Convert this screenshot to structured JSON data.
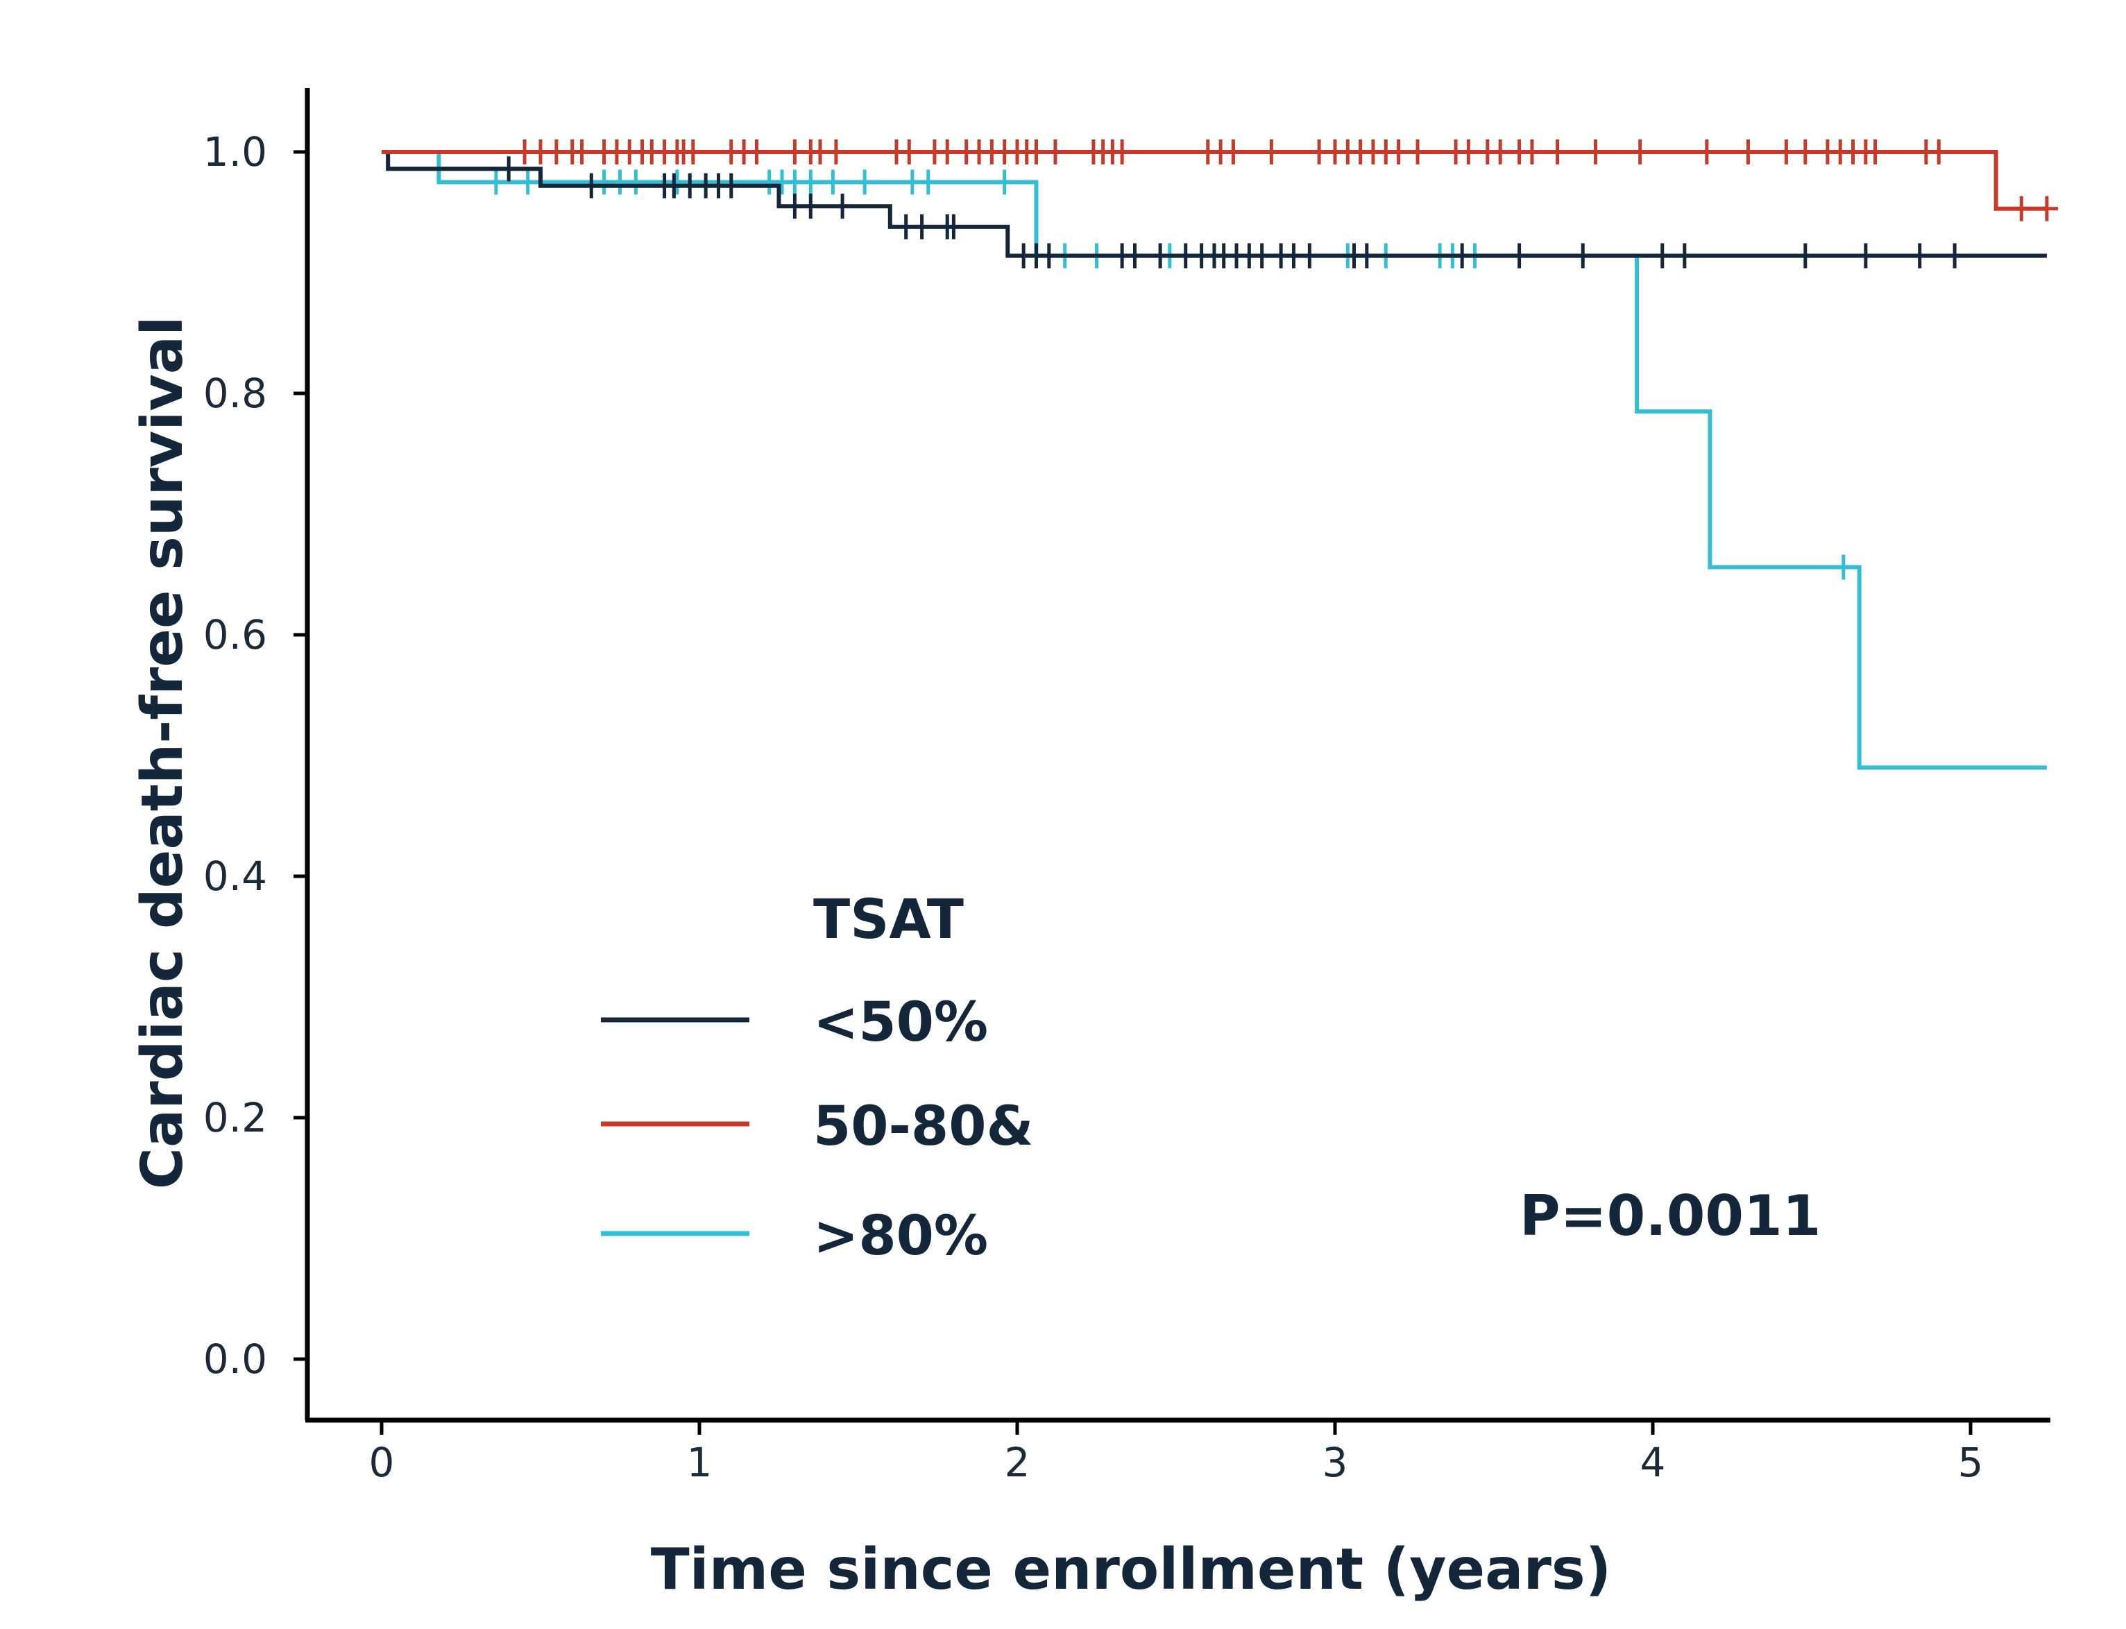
{
  "chart_data": {
    "type": "line",
    "subtype": "kaplan-meier",
    "title": "",
    "xlabel": "Time since enrollment (years)",
    "ylabel": "Cardiac death-free survival",
    "xlim": [
      -0.22,
      5.25
    ],
    "ylim": [
      -0.05,
      1.05
    ],
    "xticks": [
      0,
      1,
      2,
      3,
      4,
      5
    ],
    "xtick_labels": [
      "0",
      "1",
      "2",
      "3",
      "4",
      "5"
    ],
    "yticks": [
      0.0,
      0.2,
      0.4,
      0.6,
      0.8,
      1.0
    ],
    "ytick_labels": [
      "0.0",
      "0.2",
      "0.4",
      "0.6",
      "0.8",
      "1.0"
    ],
    "grid": false,
    "legend_title": "TSAT",
    "legend_position": "center-left",
    "annotation": "P=0.0011",
    "series": [
      {
        "name": "<50%",
        "color": "#14263a",
        "steps": [
          [
            0,
            1.0
          ],
          [
            0.02,
            0.986
          ],
          [
            0.5,
            0.972
          ],
          [
            1.25,
            0.955
          ],
          [
            1.6,
            0.938
          ],
          [
            1.97,
            0.914
          ],
          [
            5.24,
            0.914
          ]
        ],
        "censors": [
          [
            0.4,
            0.986
          ],
          [
            0.66,
            0.972
          ],
          [
            0.89,
            0.972
          ],
          [
            0.92,
            0.972
          ],
          [
            0.97,
            0.972
          ],
          [
            1.02,
            0.972
          ],
          [
            1.06,
            0.972
          ],
          [
            1.1,
            0.972
          ],
          [
            1.3,
            0.955
          ],
          [
            1.35,
            0.955
          ],
          [
            1.45,
            0.955
          ],
          [
            1.65,
            0.938
          ],
          [
            1.7,
            0.938
          ],
          [
            1.78,
            0.938
          ],
          [
            1.8,
            0.938
          ],
          [
            2.02,
            0.914
          ],
          [
            2.06,
            0.914
          ],
          [
            2.1,
            0.914
          ],
          [
            2.33,
            0.914
          ],
          [
            2.37,
            0.914
          ],
          [
            2.45,
            0.914
          ],
          [
            2.53,
            0.914
          ],
          [
            2.58,
            0.914
          ],
          [
            2.62,
            0.914
          ],
          [
            2.65,
            0.914
          ],
          [
            2.69,
            0.914
          ],
          [
            2.73,
            0.914
          ],
          [
            2.77,
            0.914
          ],
          [
            2.83,
            0.914
          ],
          [
            2.87,
            0.914
          ],
          [
            2.92,
            0.914
          ],
          [
            3.06,
            0.914
          ],
          [
            3.1,
            0.914
          ],
          [
            3.4,
            0.914
          ],
          [
            3.58,
            0.914
          ],
          [
            3.78,
            0.914
          ],
          [
            4.03,
            0.914
          ],
          [
            4.1,
            0.914
          ],
          [
            4.48,
            0.914
          ],
          [
            4.67,
            0.914
          ],
          [
            4.84,
            0.914
          ],
          [
            4.95,
            0.914
          ]
        ]
      },
      {
        "name": "50-80&",
        "color": "#c63a2b",
        "steps": [
          [
            0,
            1.0
          ],
          [
            5.08,
            0.953
          ],
          [
            5.24,
            0.953
          ]
        ],
        "censors": [
          [
            0.45,
            1.0
          ],
          [
            0.5,
            1.0
          ],
          [
            0.55,
            1.0
          ],
          [
            0.6,
            1.0
          ],
          [
            0.63,
            1.0
          ],
          [
            0.7,
            1.0
          ],
          [
            0.74,
            1.0
          ],
          [
            0.78,
            1.0
          ],
          [
            0.82,
            1.0
          ],
          [
            0.85,
            1.0
          ],
          [
            0.89,
            1.0
          ],
          [
            0.93,
            1.0
          ],
          [
            0.95,
            1.0
          ],
          [
            0.98,
            1.0
          ],
          [
            1.1,
            1.0
          ],
          [
            1.14,
            1.0
          ],
          [
            1.18,
            1.0
          ],
          [
            1.3,
            1.0
          ],
          [
            1.35,
            1.0
          ],
          [
            1.38,
            1.0
          ],
          [
            1.43,
            1.0
          ],
          [
            1.62,
            1.0
          ],
          [
            1.66,
            1.0
          ],
          [
            1.74,
            1.0
          ],
          [
            1.78,
            1.0
          ],
          [
            1.84,
            1.0
          ],
          [
            1.88,
            1.0
          ],
          [
            1.92,
            1.0
          ],
          [
            1.96,
            1.0
          ],
          [
            2.0,
            1.0
          ],
          [
            2.03,
            1.0
          ],
          [
            2.06,
            1.0
          ],
          [
            2.12,
            1.0
          ],
          [
            2.24,
            1.0
          ],
          [
            2.27,
            1.0
          ],
          [
            2.3,
            1.0
          ],
          [
            2.33,
            1.0
          ],
          [
            2.6,
            1.0
          ],
          [
            2.64,
            1.0
          ],
          [
            2.68,
            1.0
          ],
          [
            2.8,
            1.0
          ],
          [
            2.95,
            1.0
          ],
          [
            3.0,
            1.0
          ],
          [
            3.04,
            1.0
          ],
          [
            3.08,
            1.0
          ],
          [
            3.12,
            1.0
          ],
          [
            3.16,
            1.0
          ],
          [
            3.2,
            1.0
          ],
          [
            3.26,
            1.0
          ],
          [
            3.38,
            1.0
          ],
          [
            3.42,
            1.0
          ],
          [
            3.48,
            1.0
          ],
          [
            3.52,
            1.0
          ],
          [
            3.58,
            1.0
          ],
          [
            3.62,
            1.0
          ],
          [
            3.7,
            1.0
          ],
          [
            3.82,
            1.0
          ],
          [
            3.96,
            1.0
          ],
          [
            4.17,
            1.0
          ],
          [
            4.3,
            1.0
          ],
          [
            4.42,
            1.0
          ],
          [
            4.48,
            1.0
          ],
          [
            4.55,
            1.0
          ],
          [
            4.59,
            1.0
          ],
          [
            4.63,
            1.0
          ],
          [
            4.67,
            1.0
          ],
          [
            4.7,
            1.0
          ],
          [
            4.86,
            1.0
          ],
          [
            4.9,
            1.0
          ],
          [
            5.16,
            0.953
          ],
          [
            5.24,
            0.953
          ]
        ]
      },
      {
        "name": ">80%",
        "color": "#33bfd3",
        "steps": [
          [
            0,
            1.0
          ],
          [
            0.18,
            0.975
          ],
          [
            2.06,
            0.914
          ],
          [
            3.95,
            0.785
          ],
          [
            4.18,
            0.656
          ],
          [
            4.65,
            0.49
          ],
          [
            5.24,
            0.49
          ]
        ],
        "censors": [
          [
            0.36,
            0.975
          ],
          [
            0.46,
            0.975
          ],
          [
            0.7,
            0.975
          ],
          [
            0.75,
            0.975
          ],
          [
            0.8,
            0.975
          ],
          [
            0.93,
            0.975
          ],
          [
            1.22,
            0.975
          ],
          [
            1.26,
            0.975
          ],
          [
            1.3,
            0.975
          ],
          [
            1.35,
            0.975
          ],
          [
            1.42,
            0.975
          ],
          [
            1.52,
            0.975
          ],
          [
            1.67,
            0.975
          ],
          [
            1.72,
            0.975
          ],
          [
            1.96,
            0.975
          ],
          [
            2.15,
            0.914
          ],
          [
            2.25,
            0.914
          ],
          [
            2.48,
            0.914
          ],
          [
            3.04,
            0.914
          ],
          [
            3.16,
            0.914
          ],
          [
            3.33,
            0.914
          ],
          [
            3.37,
            0.914
          ],
          [
            3.44,
            0.914
          ],
          [
            4.6,
            0.656
          ]
        ]
      }
    ]
  }
}
